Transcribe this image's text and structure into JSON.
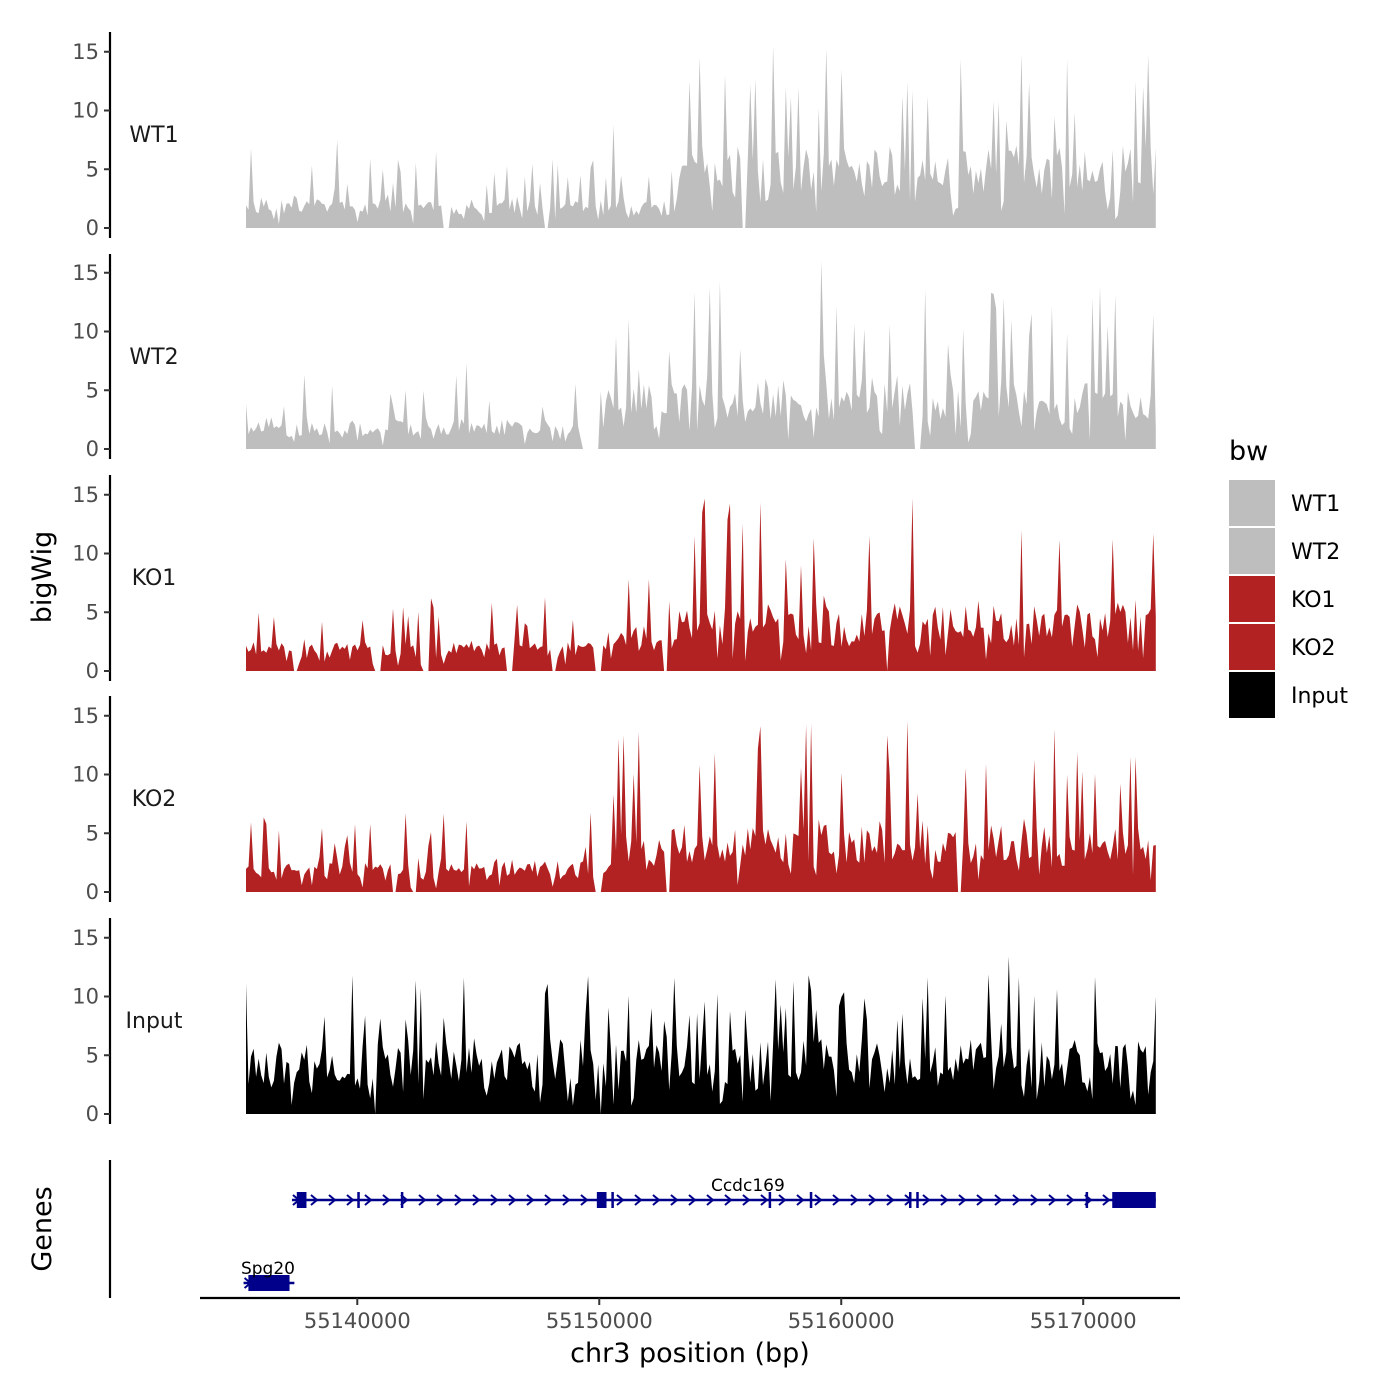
{
  "chart_data": {
    "type": "area",
    "title": "",
    "ylabel": "bigWig",
    "genes_label": "Genes",
    "xlabel": "chr3 position (bp)",
    "xlim": [
      55133500,
      55174000
    ],
    "data_range": [
      55135400,
      55173000
    ],
    "xticks": [
      55140000,
      55150000,
      55160000,
      55170000
    ],
    "xtick_labels": [
      "55140000",
      "55150000",
      "55160000",
      "55170000"
    ],
    "ylim": [
      0,
      16
    ],
    "yticks": [
      0,
      5,
      10,
      15
    ],
    "ytick_labels": [
      "0",
      "5",
      "10",
      "15"
    ],
    "legend": {
      "title": "bw",
      "position": "right",
      "entries": [
        {
          "label": "WT1",
          "color": "#BEBEBE"
        },
        {
          "label": "WT2",
          "color": "#BEBEBE"
        },
        {
          "label": "KO1",
          "color": "#B22222"
        },
        {
          "label": "KO2",
          "color": "#B22222"
        },
        {
          "label": "Input",
          "color": "#000000"
        }
      ]
    },
    "tracks": [
      {
        "name": "WT1",
        "color": "#BEBEBE",
        "base": 2.4,
        "vol": 1.6,
        "seed": 11,
        "segments": [
          [
            55135400,
            55153300,
            0.75
          ],
          [
            55153300,
            55173000,
            1.9
          ]
        ],
        "gaps": [
          [
            55143500,
            55143800
          ],
          [
            55147700,
            55147900
          ],
          [
            55155900,
            55156100
          ]
        ],
        "peaks": [
          [
            55135600,
            6.8
          ],
          [
            55139200,
            7.5
          ],
          [
            55143300,
            6.5
          ],
          [
            55150600,
            8.8
          ],
          [
            55153700,
            12.5
          ],
          [
            55157700,
            12.0
          ],
          [
            55160000,
            13.5
          ],
          [
            55163600,
            11.2
          ],
          [
            55172200,
            12.5
          ]
        ]
      },
      {
        "name": "WT2",
        "color": "#BEBEBE",
        "base": 2.0,
        "vol": 1.5,
        "seed": 23,
        "segments": [
          [
            55135400,
            55149800,
            0.85
          ],
          [
            55149800,
            55173000,
            1.9
          ]
        ],
        "gaps": [
          [
            55149300,
            55150000
          ],
          [
            55163000,
            55163300
          ]
        ],
        "peaks": [
          [
            55144500,
            7.3
          ],
          [
            55151600,
            6.8
          ],
          [
            55155800,
            8.5
          ],
          [
            55159200,
            16.0
          ],
          [
            55162000,
            10.6
          ],
          [
            55167000,
            11.0
          ],
          [
            55171000,
            10.5
          ]
        ]
      },
      {
        "name": "KO1",
        "color": "#B22222",
        "base": 2.0,
        "vol": 1.5,
        "seed": 37,
        "segments": [
          [
            55135400,
            55150200,
            0.85
          ],
          [
            55150200,
            55153000,
            1.3
          ],
          [
            55153000,
            55173000,
            1.95
          ]
        ],
        "gaps": [
          [
            55137300,
            55137500
          ],
          [
            55140700,
            55141000
          ],
          [
            55142700,
            55143000
          ],
          [
            55146100,
            55146400
          ],
          [
            55148000,
            55148200
          ],
          [
            55149800,
            55150100
          ],
          [
            55152600,
            55152800
          ],
          [
            55161800,
            55162000
          ]
        ],
        "peaks": [
          [
            55136600,
            4.6
          ],
          [
            55145600,
            5.8
          ],
          [
            55153900,
            11.5
          ],
          [
            55158900,
            11.3
          ],
          [
            55161200,
            11.5
          ],
          [
            55167400,
            12.0
          ],
          [
            55171200,
            11.2
          ],
          [
            55172900,
            11.7
          ]
        ]
      },
      {
        "name": "KO2",
        "color": "#B22222",
        "base": 2.0,
        "vol": 1.5,
        "seed": 41,
        "segments": [
          [
            55135400,
            55150600,
            0.9
          ],
          [
            55150600,
            55173000,
            1.95
          ]
        ],
        "gaps": [
          [
            55141400,
            55141600
          ],
          [
            55142300,
            55142500
          ],
          [
            55149800,
            55150100
          ],
          [
            55152700,
            55152900
          ],
          [
            55164800,
            55165000
          ]
        ],
        "peaks": [
          [
            55144500,
            6.0
          ],
          [
            55150600,
            8.3
          ],
          [
            55154200,
            10.8
          ],
          [
            55158300,
            10.6
          ],
          [
            55158800,
            14.3
          ],
          [
            55163200,
            8.4
          ],
          [
            55166000,
            10.9
          ],
          [
            55172200,
            11.5
          ]
        ]
      },
      {
        "name": "Input",
        "color": "#000000",
        "base": 4.5,
        "vol": 2.0,
        "seed": 53,
        "segments": [
          [
            55135400,
            55173000,
            1.0
          ]
        ],
        "gaps": [
          [
            55140700,
            55140800
          ],
          [
            55150000,
            55150100
          ]
        ],
        "peaks": [
          [
            55139800,
            11.8
          ],
          [
            55144400,
            11.6
          ],
          [
            55153100,
            11.6
          ],
          [
            55158000,
            11.3
          ],
          [
            55166900,
            13.4
          ],
          [
            55173000,
            10.0
          ]
        ]
      }
    ],
    "genes": [
      {
        "name": "Ccdc169",
        "start": 55137300,
        "end": 55173000,
        "row": 1,
        "exons": [
          [
            55137500,
            55137900
          ],
          [
            55140000,
            55140100
          ],
          [
            55141800,
            55141900
          ],
          [
            55149900,
            55150300
          ],
          [
            55150500,
            55150600
          ],
          [
            55157000,
            55157100
          ],
          [
            55158700,
            55158800
          ],
          [
            55162800,
            55162900
          ],
          [
            55163100,
            55163200
          ],
          [
            55170100,
            55170200
          ],
          [
            55171200,
            55173000
          ]
        ]
      },
      {
        "name": "Spg20",
        "start": 55135300,
        "end": 55137400,
        "row": 2,
        "exons": [
          [
            55135500,
            55137200
          ]
        ]
      }
    ]
  }
}
